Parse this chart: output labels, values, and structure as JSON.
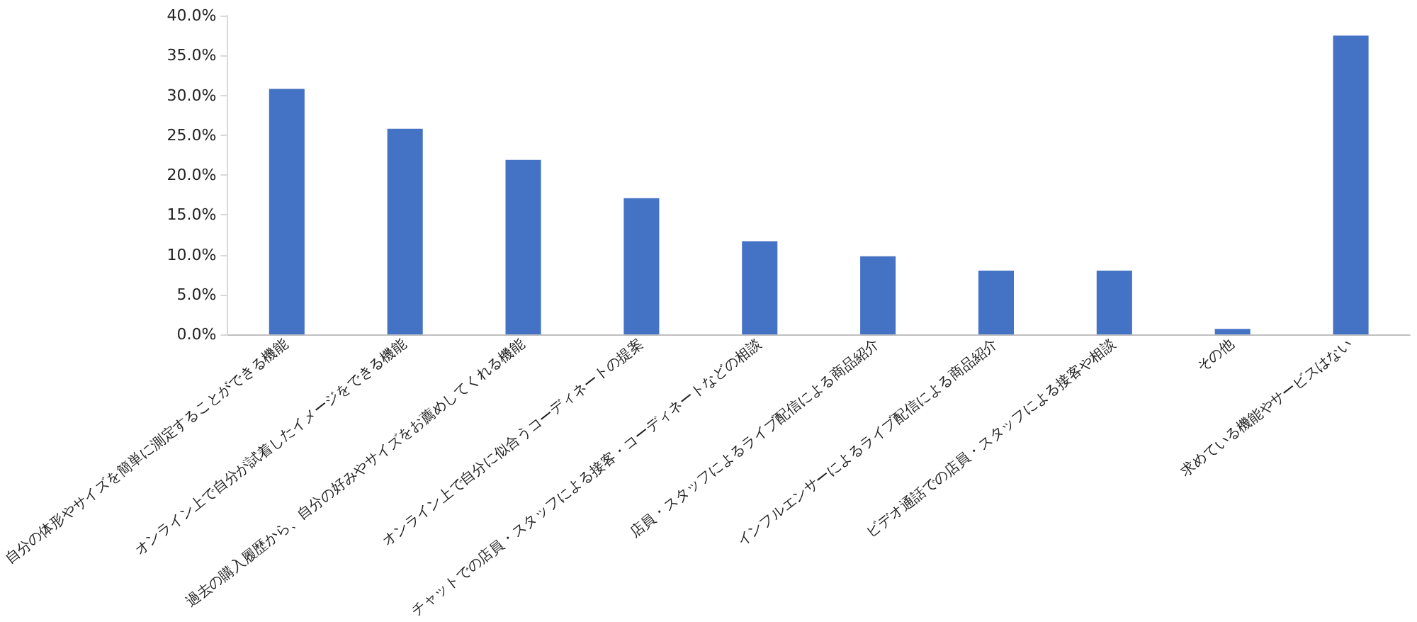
{
  "chart_data": {
    "type": "bar",
    "categories": [
      "自分の体形やサイズを簡単に測定することができる機能",
      "オンライン上で自分が試着したイメージをできる機能",
      "過去の購入履歴から、自分の好みやサイズをお薦めしてくれる機能",
      "オンライン上で自分に似合うコーディネートの提案",
      "チャットでの店員・スタッフによる接客・コーディネートなどの相談",
      "店員・スタッフによるライブ配信による商品紹介",
      "インフルエンサーによるライブ配信による商品紹介",
      "ビデオ通話での店員・スタッフによる接客や相談",
      "その他",
      "求めている機能やサービスはない"
    ],
    "values": [
      30.8,
      25.8,
      21.9,
      17.1,
      11.7,
      9.8,
      8.0,
      8.0,
      0.7,
      37.5
    ],
    "color": "#4472c4",
    "ylim": [
      0,
      40
    ],
    "yticks": [
      {
        "value": 0,
        "label": "0.0%"
      },
      {
        "value": 5,
        "label": "5.0%"
      },
      {
        "value": 10,
        "label": "10.0%"
      },
      {
        "value": 15,
        "label": "15.0%"
      },
      {
        "value": 20,
        "label": "20.0%"
      },
      {
        "value": 25,
        "label": "25.0%"
      },
      {
        "value": 30,
        "label": "30.0%"
      },
      {
        "value": 35,
        "label": "35.0%"
      },
      {
        "value": 40,
        "label": "40.0%"
      }
    ],
    "grid": false
  }
}
